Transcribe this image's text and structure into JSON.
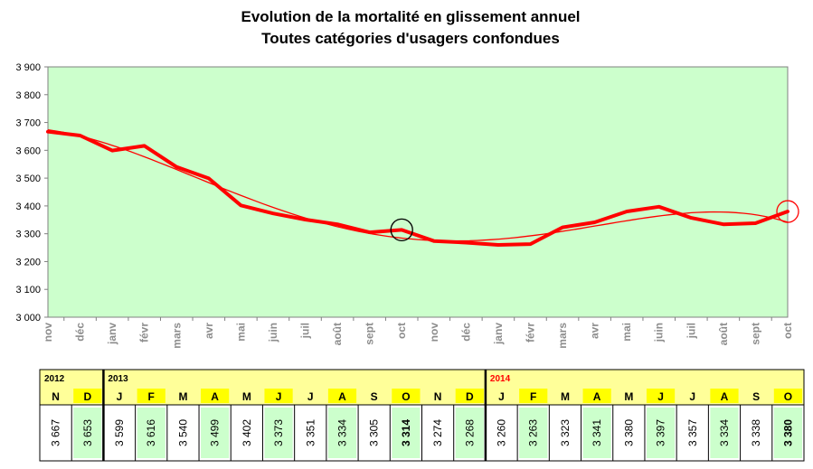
{
  "chart_data": {
    "type": "line",
    "title": "Evolution de la mortalité en glissement annuel",
    "subtitle": "Toutes catégories d'usagers confondues",
    "categories": [
      "nov",
      "déc",
      "janv",
      "févr",
      "mars",
      "avr",
      "mai",
      "juin",
      "juil",
      "août",
      "sept",
      "oct",
      "nov",
      "déc",
      "janv",
      "févr",
      "mars",
      "avr",
      "mai",
      "juin",
      "juil",
      "août",
      "sept",
      "oct"
    ],
    "series": [
      {
        "values": [
          3667,
          3653,
          3599,
          3616,
          3540,
          3499,
          3402,
          3373,
          3351,
          3334,
          3305,
          3314,
          3274,
          3268,
          3260,
          3263,
          3323,
          3341,
          3380,
          3397,
          3357,
          3334,
          3338,
          3380
        ]
      }
    ],
    "trendline": true,
    "ylim": [
      3000,
      3900
    ],
    "yticks": [
      "3 000",
      "3 100",
      "3 200",
      "3 300",
      "3 400",
      "3 500",
      "3 600",
      "3 700",
      "3 800",
      "3 900"
    ],
    "grid": false,
    "background_color": "#ccffcc",
    "line_color": "#ff0000",
    "highlighted_points": [
      {
        "index": 11,
        "color": "#000000"
      },
      {
        "index": 23,
        "color": "#ff0000"
      }
    ]
  },
  "table": {
    "groups": [
      {
        "year": "2012",
        "year_color": "#000000",
        "start": 0,
        "end": 2
      },
      {
        "year": "2013",
        "year_color": "#000000",
        "start": 2,
        "end": 14
      },
      {
        "year": "2014",
        "year_color": "#ff0000",
        "start": 14,
        "end": 24
      }
    ],
    "months": [
      "N",
      "D",
      "J",
      "F",
      "M",
      "A",
      "M",
      "J",
      "J",
      "A",
      "S",
      "O",
      "N",
      "D",
      "J",
      "F",
      "M",
      "A",
      "M",
      "J",
      "J",
      "A",
      "S",
      "O"
    ],
    "values": [
      "3 667",
      "3 653",
      "3 599",
      "3 616",
      "3 540",
      "3 499",
      "3 402",
      "3 373",
      "3 351",
      "3 334",
      "3 305",
      "3 314",
      "3 274",
      "3 268",
      "3 260",
      "3 263",
      "3 323",
      "3 341",
      "3 380",
      "3 397",
      "3 357",
      "3 334",
      "3 338",
      "3 380"
    ],
    "bold_indices": [
      11,
      23
    ],
    "red_indices": [
      23
    ],
    "colors": {
      "header_bg": "#ffff99",
      "month_highlight": "#ffff00",
      "value_alt": "#ccffcc",
      "value_plain": "#ffffff"
    }
  }
}
